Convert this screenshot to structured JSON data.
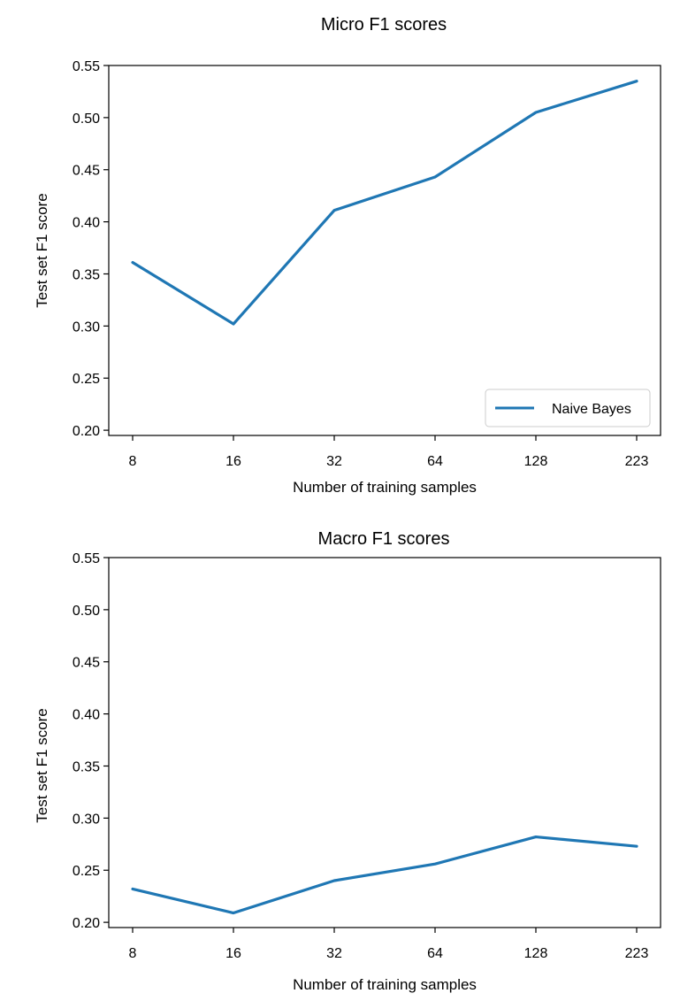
{
  "colors": {
    "series": "#1f77b4",
    "axes": "#000000",
    "legend_border": "#cccccc"
  },
  "chart_data": [
    {
      "type": "line",
      "title": "Micro F1 scores",
      "xlabel": "Number of training samples",
      "ylabel": "Test set F1 score",
      "categories": [
        "8",
        "16",
        "32",
        "64",
        "128",
        "223"
      ],
      "ylim": [
        0.195,
        0.55
      ],
      "yticks": [
        "0.20",
        "0.25",
        "0.30",
        "0.35",
        "0.40",
        "0.45",
        "0.50",
        "0.55"
      ],
      "grid": false,
      "legend": "lower right",
      "series": [
        {
          "name": "Naive Bayes",
          "values": [
            0.361,
            0.302,
            0.411,
            0.443,
            0.505,
            0.535
          ]
        }
      ]
    },
    {
      "type": "line",
      "title": "Macro F1 scores",
      "xlabel": "Number of training samples",
      "ylabel": "Test set F1 score",
      "categories": [
        "8",
        "16",
        "32",
        "64",
        "128",
        "223"
      ],
      "ylim": [
        0.195,
        0.55
      ],
      "yticks": [
        "0.20",
        "0.25",
        "0.30",
        "0.35",
        "0.40",
        "0.45",
        "0.50",
        "0.55"
      ],
      "grid": false,
      "series": [
        {
          "values": [
            0.232,
            0.209,
            0.24,
            0.256,
            0.282,
            0.273
          ]
        }
      ]
    }
  ]
}
